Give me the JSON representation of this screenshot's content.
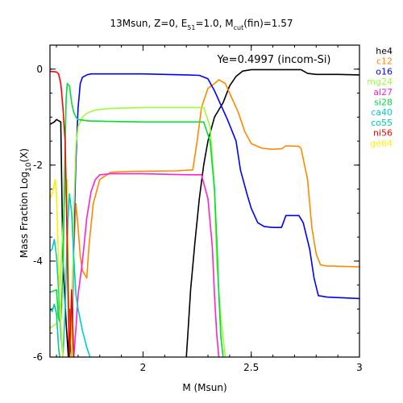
{
  "chart_data": {
    "type": "line",
    "title": "13Msun, Z=0, E51=1.0, Mcut(fin)=1.57",
    "title_parts": {
      "lead": "13Msun, Z=0, E",
      "e_sub": "51",
      "mid": "=1.0, M",
      "m_sub": "cut",
      "tail": "(fin)=1.57"
    },
    "annotation": "Ye=0.4997 (incom-Si)",
    "xlabel": "M (Msun)",
    "ylabel": "Mass Fraction Log10(X)",
    "ylabel_parts": {
      "lead": "Mass Fraction Log",
      "sub": "10",
      "tail": "(X)"
    },
    "xlim": [
      1.57,
      3.0
    ],
    "ylim": [
      -6,
      0.5
    ],
    "x_ticks": [
      {
        "value": 2,
        "label": "2"
      },
      {
        "value": 2.5,
        "label": "2.5"
      },
      {
        "value": 3,
        "label": "3"
      }
    ],
    "y_ticks": [
      {
        "value": 0,
        "label": "0"
      },
      {
        "value": -2,
        "label": "-2"
      },
      {
        "value": -4,
        "label": "-4"
      },
      {
        "value": -6,
        "label": "-6"
      }
    ],
    "grid": false,
    "legend_position": "right",
    "series": [
      {
        "name": "he4",
        "color": "#000000",
        "points": [
          [
            1.57,
            -1.15
          ],
          [
            1.59,
            -1.1
          ],
          [
            1.6,
            -1.05
          ],
          [
            1.62,
            -1.1
          ],
          [
            1.63,
            -4.0
          ],
          [
            1.645,
            -5.3
          ],
          [
            1.655,
            -6.0
          ],
          [
            1.66,
            -5.0
          ],
          [
            1.665,
            -6.0
          ],
          [
            null,
            null
          ],
          [
            2.2,
            -6.0
          ],
          [
            2.21,
            -5.3
          ],
          [
            2.22,
            -4.6
          ],
          [
            2.24,
            -3.6
          ],
          [
            2.26,
            -2.7
          ],
          [
            2.28,
            -2.0
          ],
          [
            2.3,
            -1.5
          ],
          [
            2.33,
            -1.0
          ],
          [
            2.37,
            -0.7
          ],
          [
            2.4,
            -0.35
          ],
          [
            2.43,
            -0.15
          ],
          [
            2.46,
            -0.04
          ],
          [
            2.5,
            -0.01
          ],
          [
            2.6,
            -0.01
          ],
          [
            2.73,
            -0.01
          ],
          [
            2.76,
            -0.09
          ],
          [
            2.8,
            -0.11
          ],
          [
            2.9,
            -0.11
          ],
          [
            3.0,
            -0.12
          ]
        ]
      },
      {
        "name": "c12",
        "color": "#ff8800",
        "points": [
          [
            1.66,
            -6.0
          ],
          [
            1.67,
            -5.2
          ],
          [
            1.675,
            -4.2
          ],
          [
            1.685,
            -3.3
          ],
          [
            1.69,
            -2.8
          ],
          [
            1.7,
            -3.3
          ],
          [
            1.71,
            -3.9
          ],
          [
            1.72,
            -4.2
          ],
          [
            1.74,
            -4.35
          ],
          [
            1.75,
            -3.7
          ],
          [
            1.77,
            -2.8
          ],
          [
            1.8,
            -2.3
          ],
          [
            1.85,
            -2.15
          ],
          [
            1.95,
            -2.13
          ],
          [
            2.15,
            -2.12
          ],
          [
            2.23,
            -2.1
          ],
          [
            2.25,
            -1.5
          ],
          [
            2.27,
            -0.8
          ],
          [
            2.3,
            -0.4
          ],
          [
            2.33,
            -0.3
          ],
          [
            2.35,
            -0.22
          ],
          [
            2.38,
            -0.3
          ],
          [
            2.4,
            -0.5
          ],
          [
            2.44,
            -0.9
          ],
          [
            2.47,
            -1.3
          ],
          [
            2.5,
            -1.55
          ],
          [
            2.55,
            -1.65
          ],
          [
            2.6,
            -1.67
          ],
          [
            2.64,
            -1.66
          ],
          [
            2.66,
            -1.6
          ],
          [
            2.72,
            -1.61
          ],
          [
            2.73,
            -1.65
          ],
          [
            2.76,
            -2.3
          ],
          [
            2.78,
            -3.3
          ],
          [
            2.8,
            -3.85
          ],
          [
            2.82,
            -4.08
          ],
          [
            2.85,
            -4.1
          ],
          [
            3.0,
            -4.12
          ]
        ]
      },
      {
        "name": "o16",
        "color": "#0000ff",
        "points": [
          [
            1.67,
            -6.0
          ],
          [
            1.675,
            -5.0
          ],
          [
            1.68,
            -3.5
          ],
          [
            1.69,
            -1.9
          ],
          [
            1.7,
            -0.8
          ],
          [
            1.71,
            -0.3
          ],
          [
            1.72,
            -0.17
          ],
          [
            1.74,
            -0.12
          ],
          [
            1.76,
            -0.1
          ],
          [
            1.8,
            -0.1
          ],
          [
            2.0,
            -0.1
          ],
          [
            2.2,
            -0.12
          ],
          [
            2.26,
            -0.13
          ],
          [
            2.3,
            -0.2
          ],
          [
            2.33,
            -0.45
          ],
          [
            2.36,
            -0.75
          ],
          [
            2.39,
            -1.05
          ],
          [
            2.43,
            -1.5
          ],
          [
            2.45,
            -2.1
          ],
          [
            2.48,
            -2.6
          ],
          [
            2.5,
            -2.9
          ],
          [
            2.53,
            -3.2
          ],
          [
            2.56,
            -3.28
          ],
          [
            2.6,
            -3.3
          ],
          [
            2.64,
            -3.3
          ],
          [
            2.66,
            -3.05
          ],
          [
            2.72,
            -3.05
          ],
          [
            2.74,
            -3.2
          ],
          [
            2.77,
            -3.75
          ],
          [
            2.79,
            -4.35
          ],
          [
            2.81,
            -4.72
          ],
          [
            2.85,
            -4.75
          ],
          [
            3.0,
            -4.78
          ]
        ]
      },
      {
        "name": "mg24",
        "color": "#99ff33",
        "points": [
          [
            1.57,
            -5.4
          ],
          [
            1.6,
            -5.3
          ],
          [
            1.61,
            -4.9
          ],
          [
            1.62,
            -4.2
          ],
          [
            1.63,
            -3.3
          ],
          [
            1.64,
            -2.5
          ],
          [
            1.65,
            -2.3
          ],
          [
            1.66,
            -5.8
          ],
          [
            1.665,
            -6.0
          ],
          [
            null,
            null
          ],
          [
            1.67,
            -6.0
          ],
          [
            1.68,
            -3.0
          ],
          [
            1.69,
            -1.6
          ],
          [
            1.7,
            -1.2
          ],
          [
            1.72,
            -1.0
          ],
          [
            1.74,
            -0.92
          ],
          [
            1.78,
            -0.85
          ],
          [
            1.85,
            -0.82
          ],
          [
            2.0,
            -0.8
          ],
          [
            2.2,
            -0.8
          ],
          [
            2.28,
            -0.8
          ],
          [
            2.31,
            -1.2
          ],
          [
            2.33,
            -2.5
          ],
          [
            2.34,
            -4.0
          ],
          [
            2.36,
            -5.2
          ],
          [
            2.38,
            -6.0
          ]
        ]
      },
      {
        "name": "al27",
        "color": "#ff22cc",
        "points": [
          [
            1.68,
            -6.0
          ],
          [
            1.69,
            -5.4
          ],
          [
            1.7,
            -4.7
          ],
          [
            1.72,
            -4.0
          ],
          [
            1.74,
            -3.1
          ],
          [
            1.76,
            -2.55
          ],
          [
            1.78,
            -2.3
          ],
          [
            1.8,
            -2.2
          ],
          [
            1.85,
            -2.18
          ],
          [
            2.0,
            -2.18
          ],
          [
            2.2,
            -2.2
          ],
          [
            2.27,
            -2.2
          ],
          [
            2.3,
            -2.7
          ],
          [
            2.32,
            -3.7
          ],
          [
            2.33,
            -4.7
          ],
          [
            2.34,
            -5.5
          ],
          [
            2.35,
            -6.0
          ]
        ]
      },
      {
        "name": "si28",
        "color": "#00dd33",
        "points": [
          [
            1.57,
            -4.65
          ],
          [
            1.6,
            -4.6
          ],
          [
            1.61,
            -5.2
          ],
          [
            1.62,
            -5.3
          ],
          [
            1.63,
            -4.2
          ],
          [
            1.64,
            -1.6
          ],
          [
            1.645,
            -0.6
          ],
          [
            1.65,
            -0.3
          ],
          [
            1.66,
            -0.35
          ],
          [
            1.67,
            -0.7
          ],
          [
            1.68,
            -0.9
          ],
          [
            1.69,
            -1.0
          ],
          [
            1.7,
            -1.05
          ],
          [
            1.75,
            -1.08
          ],
          [
            2.0,
            -1.1
          ],
          [
            2.2,
            -1.1
          ],
          [
            2.28,
            -1.1
          ],
          [
            2.31,
            -1.5
          ],
          [
            2.33,
            -2.5
          ],
          [
            2.34,
            -3.5
          ],
          [
            2.35,
            -4.7
          ],
          [
            2.36,
            -5.6
          ],
          [
            2.37,
            -6.0
          ]
        ]
      },
      {
        "name": "ca40",
        "color": "#00cccc",
        "points": [
          [
            1.57,
            -3.8
          ],
          [
            1.58,
            -3.75
          ],
          [
            1.59,
            -3.55
          ],
          [
            1.6,
            -3.9
          ],
          [
            1.61,
            -4.6
          ],
          [
            1.62,
            -5.5
          ],
          [
            1.63,
            -6.0
          ],
          [
            1.64,
            -5.0
          ],
          [
            1.65,
            -3.4
          ],
          [
            1.66,
            -2.6
          ],
          [
            1.67,
            -3.0
          ],
          [
            1.68,
            -3.9
          ],
          [
            1.69,
            -4.7
          ],
          [
            1.7,
            -5.0
          ],
          [
            1.72,
            -5.45
          ],
          [
            1.74,
            -5.8
          ],
          [
            1.755,
            -6.0
          ]
        ]
      },
      {
        "name": "co55",
        "color": "#00cc99",
        "points": [
          [
            1.57,
            -5.0
          ],
          [
            1.58,
            -5.05
          ],
          [
            1.59,
            -4.9
          ],
          [
            1.6,
            -5.1
          ],
          [
            1.61,
            -5.8
          ],
          [
            1.615,
            -6.0
          ]
        ]
      },
      {
        "name": "ni56",
        "color": "#ff0000",
        "points": [
          [
            1.57,
            -0.05
          ],
          [
            1.58,
            -0.05
          ],
          [
            1.6,
            -0.06
          ],
          [
            1.61,
            -0.1
          ],
          [
            1.62,
            -0.3
          ],
          [
            1.63,
            -0.8
          ],
          [
            1.64,
            -1.5
          ],
          [
            1.645,
            -2.5
          ],
          [
            1.65,
            -3.8
          ],
          [
            1.655,
            -5.0
          ],
          [
            1.66,
            -6.0
          ],
          [
            1.67,
            -4.6
          ],
          [
            1.675,
            -5.4
          ],
          [
            1.68,
            -6.0
          ]
        ]
      },
      {
        "name": "ge64",
        "color": "#ffee00",
        "points": [
          [
            1.57,
            -2.7
          ],
          [
            1.58,
            -2.6
          ],
          [
            1.595,
            -2.3
          ],
          [
            1.6,
            -2.6
          ],
          [
            1.61,
            -4.1
          ],
          [
            1.62,
            -5.2
          ],
          [
            1.63,
            -6.0
          ]
        ]
      }
    ]
  }
}
